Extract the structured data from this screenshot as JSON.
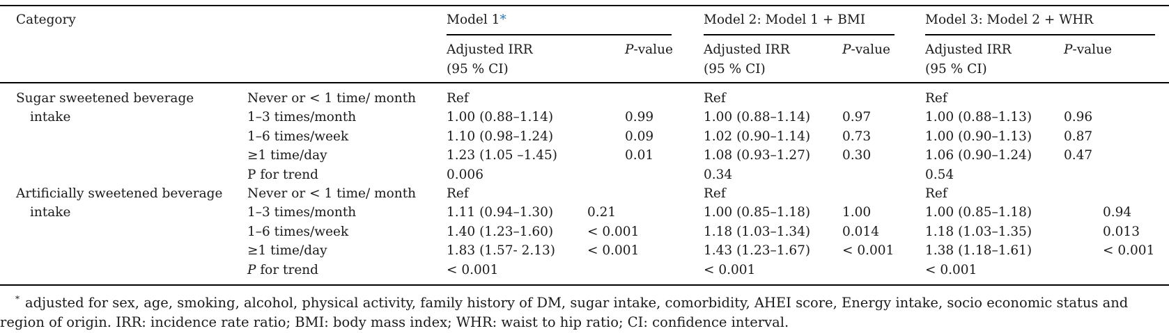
{
  "header": {
    "category": "Category",
    "model1": "Model 1",
    "model1_marker": "*",
    "model2": "Model 2: Model 1 + BMI",
    "model3": "Model 3: Model 2 + WHR",
    "irr_line1": "Adjusted IRR",
    "irr_line2": "(95 % CI)",
    "p_italic": "P",
    "p_suffix": "-value"
  },
  "groups": [
    {
      "name_line1": "Sugar sweetened beverage",
      "name_line2": "intake",
      "rows": [
        {
          "label": "Never or < 1 time/ month",
          "m1_irr": "Ref",
          "m1_p": "",
          "m2_irr": "Ref",
          "m2_p": "",
          "m3_irr": "Ref",
          "m3_p": ""
        },
        {
          "label": "1–3 times/month",
          "m1_irr": "1.00 (0.88–1.14)",
          "m1_p": "0.99",
          "m2_irr": "1.00 (0.88–1.14)",
          "m2_p": "0.97",
          "m3_irr": "1.00 (0.88–1.13)",
          "m3_p": "0.96"
        },
        {
          "label": "1–6 times/week",
          "m1_irr": "1.10 (0.98–1.24)",
          "m1_p": "0.09",
          "m2_irr": "1.02 (0.90–1.14)",
          "m2_p": "0.73",
          "m3_irr": "1.00 (0.90–1.13)",
          "m3_p": "0.87"
        },
        {
          "label": "≥1 time/day",
          "m1_irr": "1.23 (1.05 –1.45)",
          "m1_p": "0.01",
          "m2_irr": "1.08 (0.93–1.27)",
          "m2_p": "0.30",
          "m3_irr": "1.06 (0.90–1.24)",
          "m3_p": "0.47"
        },
        {
          "label": "P for trend",
          "m1_irr": "0.006",
          "m1_p": "",
          "m2_irr": "0.34",
          "m2_p": "",
          "m3_irr": "0.54",
          "m3_p": ""
        }
      ]
    },
    {
      "name_line1": "Artificially sweetened beverage",
      "name_line2": "intake",
      "rows": [
        {
          "label": "Never or < 1 time/ month",
          "m1_irr": "Ref",
          "m1_p": "",
          "m2_irr": "Ref",
          "m2_p": "",
          "m3_irr": "Ref",
          "m3_p": ""
        },
        {
          "label": "1–3 times/month",
          "m1_irr": "1.11 (0.94–1.30)",
          "m1_p": "0.21",
          "m2_irr": "1.00 (0.85–1.18)",
          "m2_p": "1.00",
          "m3_irr": "1.00 (0.85–1.18)",
          "m3_p": "0.94"
        },
        {
          "label": "1–6 times/week",
          "m1_irr": "1.40 (1.23–1.60)",
          "m1_p": "< 0.001",
          "m2_irr": "1.18 (1.03–1.34)",
          "m2_p": "0.014",
          "m3_irr": "1.18 (1.03–1.35)",
          "m3_p": "0.013"
        },
        {
          "label": "≥1 time/day",
          "m1_irr": "1.83 (1.57- 2.13)",
          "m1_p": "< 0.001",
          "m2_irr": "1.43 (1.23–1.67)",
          "m2_p": "< 0.001",
          "m3_irr": "1.38 (1.18–1.61)",
          "m3_p": "< 0.001"
        },
        {
          "label_italic": "P",
          "label_rest": " for trend",
          "m1_irr": "< 0.001",
          "m1_p": "",
          "m2_irr": "< 0.001",
          "m2_p": "",
          "m3_irr": "< 0.001",
          "m3_p": ""
        }
      ]
    }
  ],
  "footnote": {
    "marker": "*",
    "line1": "adjusted for sex, age, smoking, alcohol, physical activity, family history of DM, sugar intake, comorbidity, AHEI score, Energy intake, socio economic status and",
    "line2": "region of origin. IRR: incidence rate ratio; BMI: body mass index; WHR: waist to hip ratio; CI: confidence interval."
  }
}
